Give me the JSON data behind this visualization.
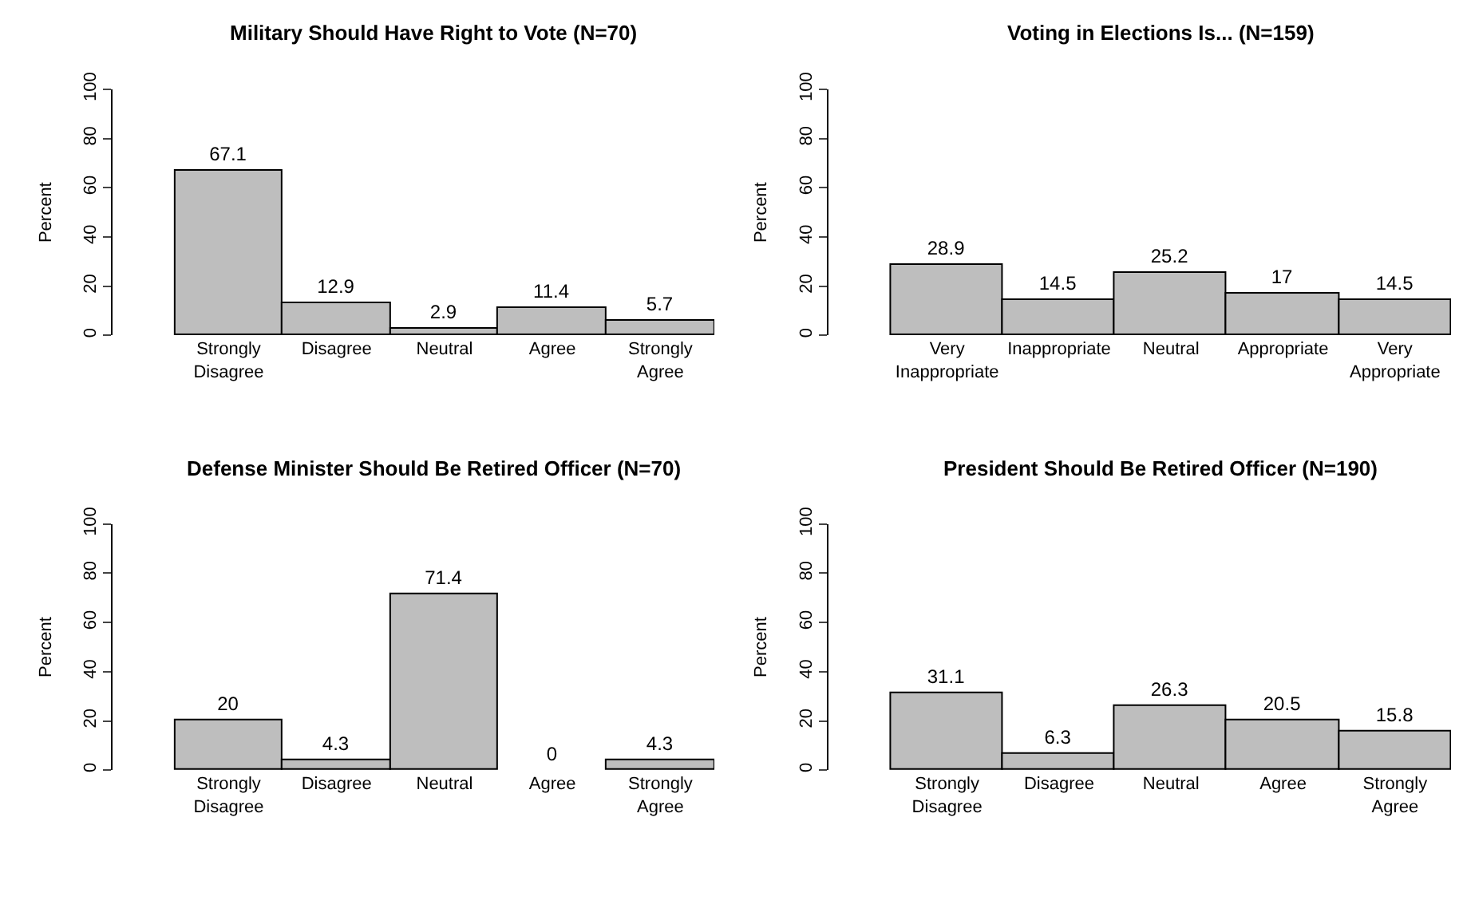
{
  "chart_data": [
    {
      "type": "bar",
      "title": "Military Should Have Right to Vote (N=70)",
      "ylabel": "Percent",
      "categories": [
        "Strongly\nDisagree",
        "Disagree",
        "Neutral",
        "Agree",
        "Strongly\nAgree"
      ],
      "values": [
        67.1,
        12.9,
        2.9,
        11.4,
        5.7
      ],
      "color": "#bebebe",
      "ylim": [
        0,
        100
      ],
      "yticks": [
        0,
        20,
        40,
        60,
        80,
        100
      ],
      "data_labels": true
    },
    {
      "type": "bar",
      "title": "Voting in Elections Is... (N=159)",
      "ylabel": "Percent",
      "categories": [
        "Very\nInappropriate",
        "Inappropriate",
        "Neutral",
        "Appropriate",
        "Very\nAppropriate"
      ],
      "values": [
        28.9,
        14.5,
        25.2,
        17,
        14.5
      ],
      "color": "#bebebe",
      "ylim": [
        0,
        100
      ],
      "yticks": [
        0,
        20,
        40,
        60,
        80,
        100
      ],
      "data_labels": true
    },
    {
      "type": "bar",
      "title": "Defense Minister Should Be Retired Officer (N=70)",
      "ylabel": "Percent",
      "categories": [
        "Strongly\nDisagree",
        "Disagree",
        "Neutral",
        "Agree",
        "Strongly\nAgree"
      ],
      "values": [
        20,
        4.3,
        71.4,
        0,
        4.3
      ],
      "color": "#bebebe",
      "ylim": [
        0,
        100
      ],
      "yticks": [
        0,
        20,
        40,
        60,
        80,
        100
      ],
      "data_labels": true
    },
    {
      "type": "bar",
      "title": "President Should Be Retired Officer (N=190)",
      "ylabel": "Percent",
      "categories": [
        "Strongly\nDisagree",
        "Disagree",
        "Neutral",
        "Agree",
        "Strongly\nAgree"
      ],
      "values": [
        31.1,
        6.3,
        26.3,
        20.5,
        15.8
      ],
      "color": "#bebebe",
      "ylim": [
        0,
        100
      ],
      "yticks": [
        0,
        20,
        40,
        60,
        80,
        100
      ],
      "data_labels": true
    }
  ]
}
